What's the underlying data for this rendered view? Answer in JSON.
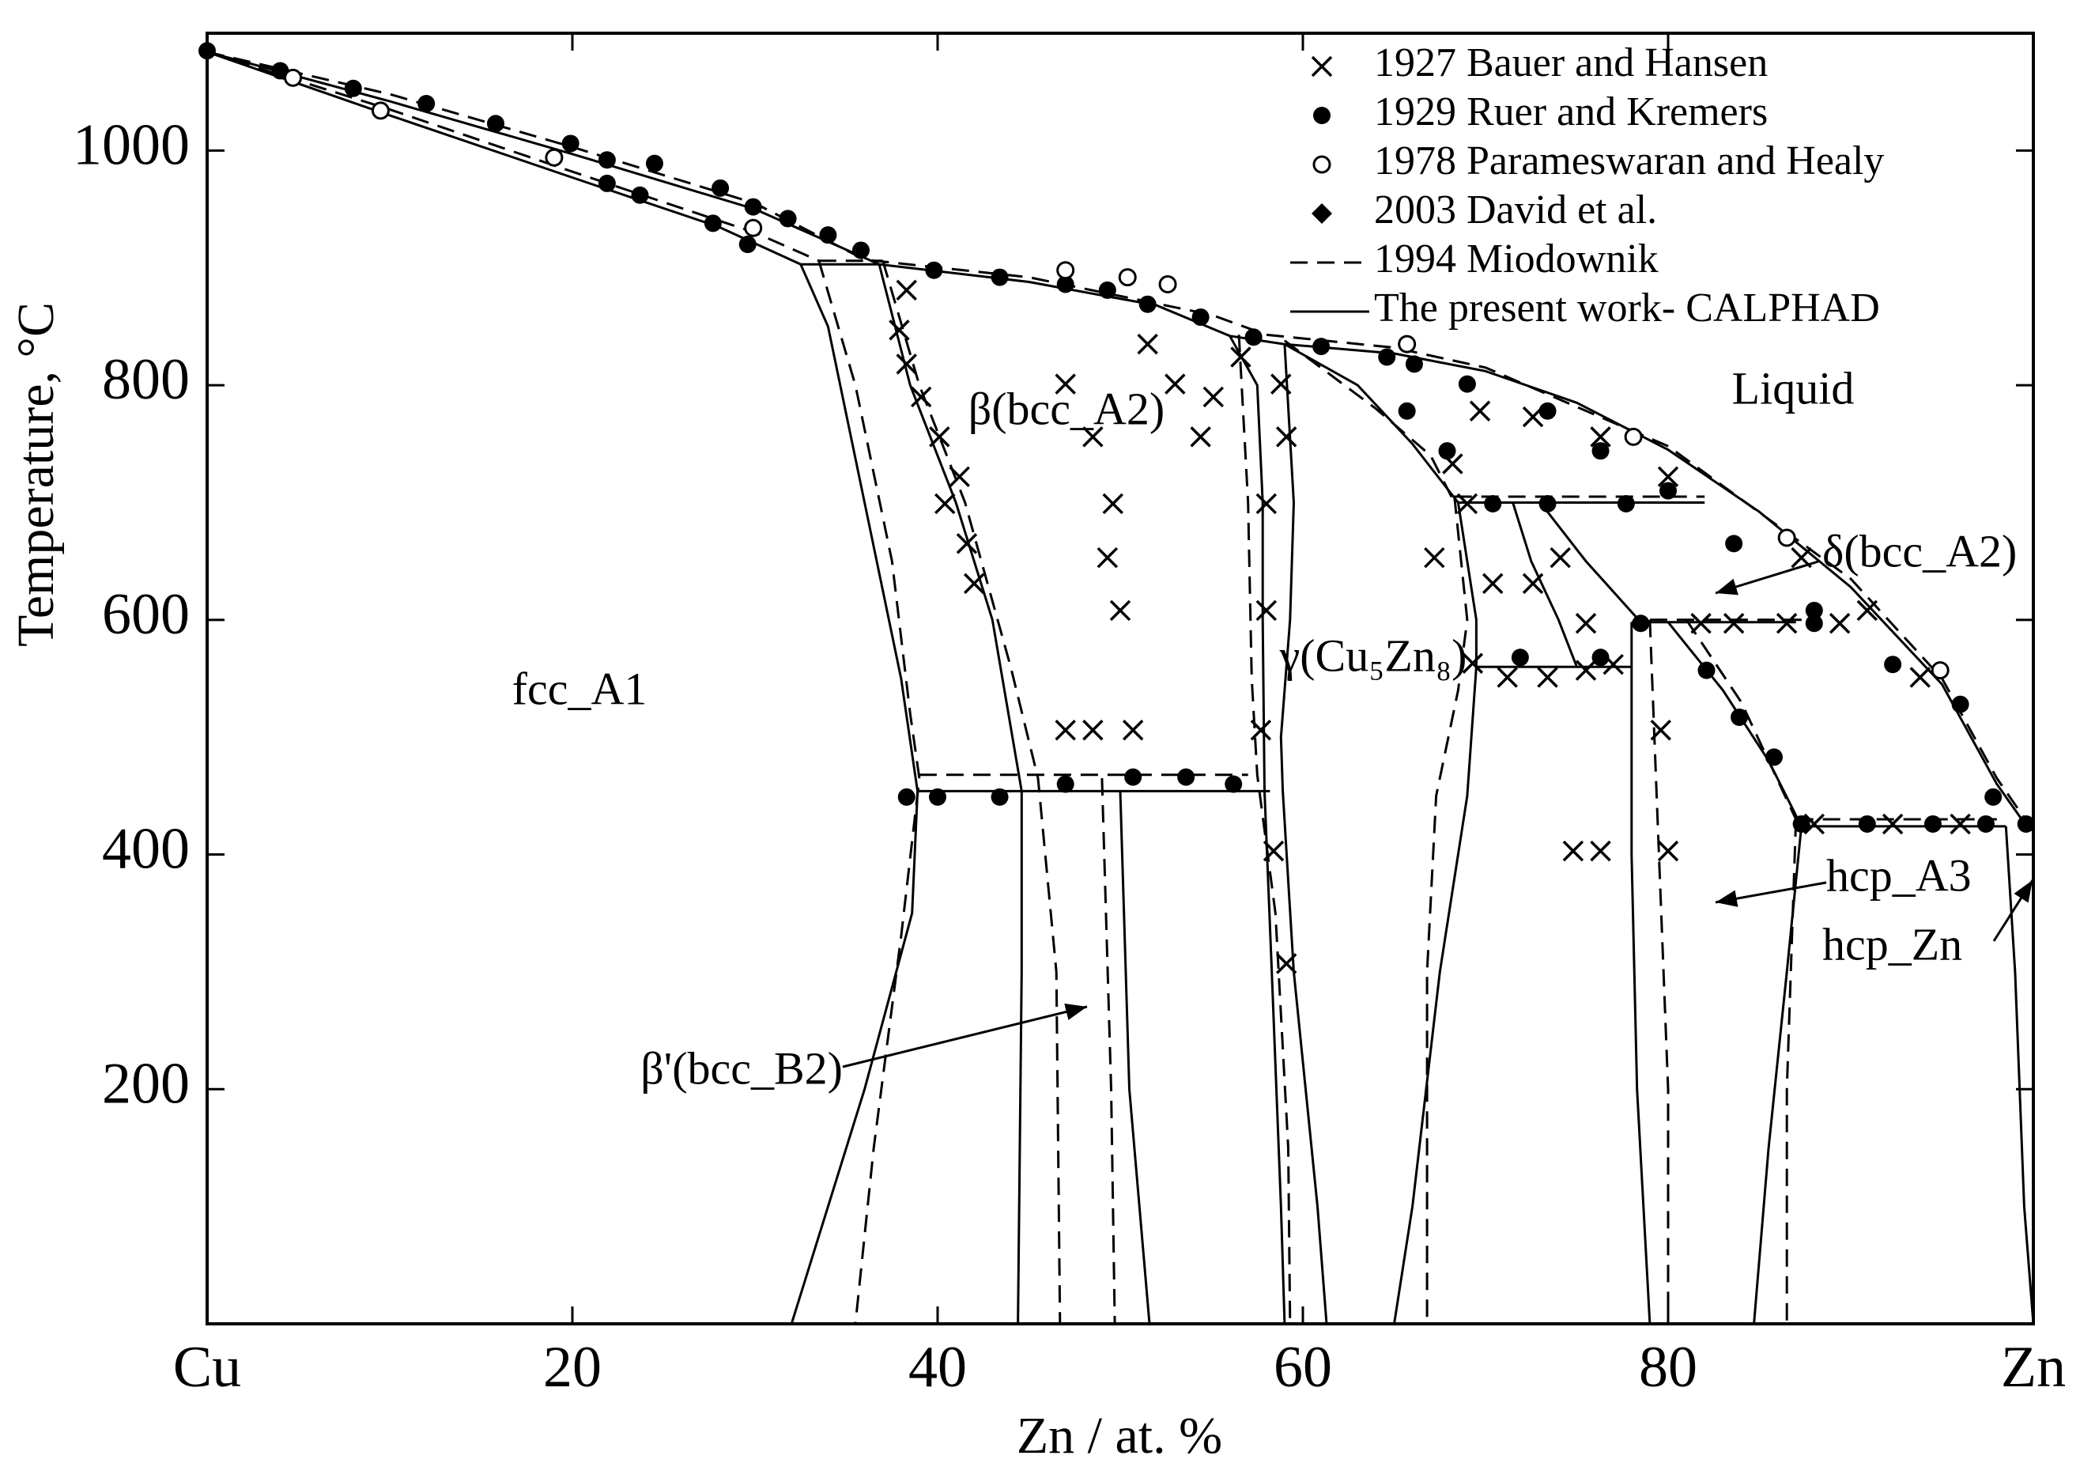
{
  "chart_data": {
    "type": "line",
    "x_label": "Zn / at. %",
    "y_label": "Temperature, °C",
    "xlim": [
      0,
      100
    ],
    "ylim": [
      0,
      1100
    ],
    "xticks": [
      {
        "value": 0,
        "label": "Cu"
      },
      20,
      40,
      60,
      80,
      {
        "value": 100,
        "label": "Zn"
      }
    ],
    "yticks": [
      200,
      400,
      600,
      800,
      1000
    ],
    "legend": "upper right",
    "annotations": [
      "Liquid",
      "fcc_A1",
      "β(bcc_A2)",
      "γ(Cu₅Zn₈)",
      "δ(bcc_A2)",
      "hcp_A3",
      "hcp_Zn",
      "β'(bcc_B2)"
    ],
    "series": [
      {
        "name": "1927 Bauer and Hansen",
        "type": "scatter",
        "marker": "x",
        "color": "#000000",
        "x": [
          38.3,
          37.9,
          38.3,
          39.1,
          40.1,
          41.2,
          40.4,
          41.6,
          42,
          47,
          48.5,
          49.6,
          49.3,
          50,
          47,
          48.5,
          50.7,
          51.5,
          53,
          54.4,
          55.1,
          56.6,
          58.8,
          59.1,
          58,
          58,
          57.7,
          58.4,
          59.1,
          67.2,
          68.2,
          69,
          70.4,
          69.3,
          71.2,
          73.4,
          75.5,
          77,
          72.6,
          74.1,
          75.5,
          74.8,
          76.3,
          79.6,
          80,
          81.8,
          83.6,
          86.5,
          89.4,
          88,
          92.3,
          96,
          69.7,
          72.6,
          76.3,
          80,
          87.3,
          90.9,
          93.8
        ],
        "values": [
          881,
          847,
          818,
          790,
          756,
          722,
          699,
          665,
          631,
          801,
          756,
          699,
          653,
          608,
          506,
          506,
          506,
          835,
          801,
          756,
          790,
          824,
          801,
          756,
          699,
          608,
          506,
          403,
          307,
          653,
          733,
          699,
          631,
          563,
          551,
          551,
          557,
          562,
          631,
          653,
          597,
          403,
          403,
          506,
          403,
          597,
          597,
          597,
          597,
          426,
          426,
          426,
          778,
          773,
          756,
          722,
          653,
          608,
          551
        ]
      },
      {
        "name": "1929 Ruer and Kremers",
        "type": "scatter",
        "marker": "circle",
        "color": "#000000",
        "x": [
          0,
          4,
          8,
          12,
          15.8,
          19.9,
          21.9,
          24.5,
          28.1,
          29.9,
          31.8,
          34,
          35.8,
          39.8,
          43.4,
          47,
          49.3,
          51.5,
          54.4,
          57.3,
          61,
          64.6,
          66.1,
          69,
          73.4,
          76.3,
          80,
          83.6,
          88,
          92.3,
          96,
          97.8,
          99.6,
          21.9,
          23.7,
          27.7,
          29.6,
          40,
          43.4,
          47,
          50.7,
          53.6,
          56.2,
          38.3,
          65.7,
          67.9,
          70.4,
          73.4,
          77.7,
          71.9,
          76.3,
          82.1,
          83.9,
          85.8,
          87.3,
          90.9,
          94.5,
          97.4,
          78.5,
          88
        ],
        "values": [
          1085,
          1068,
          1053,
          1040,
          1023,
          1006,
          992,
          989,
          968,
          952,
          942,
          928,
          915,
          898,
          892,
          886,
          881,
          869,
          858,
          841,
          833,
          824,
          818,
          801,
          778,
          744,
          710,
          665,
          608,
          562,
          528,
          449,
          426,
          972,
          962,
          938,
          920,
          449,
          449,
          460,
          466,
          466,
          460,
          449,
          778,
          744,
          699,
          699,
          699,
          568,
          568,
          557,
          517,
          483,
          426,
          426,
          426,
          426,
          597,
          597
        ]
      },
      {
        "name": "1978 Parameswaran and Healy",
        "type": "scatter",
        "marker": "open-circle",
        "color": "#000000",
        "x": [
          4.7,
          9.5,
          19,
          29.9,
          47,
          50.4,
          52.6,
          65.7,
          78.1,
          86.5,
          94.9
        ],
        "values": [
          1062,
          1034,
          994,
          934,
          898,
          892,
          886,
          835,
          756,
          670,
          557
        ]
      },
      {
        "name": "2003 David et al.",
        "type": "scatter",
        "marker": "diamond",
        "color": "#000000",
        "x": [],
        "values": []
      },
      {
        "name": "1994 Miodownik",
        "type": "line",
        "dash": "dashed",
        "color": "#000000",
        "x": [
          0,
          10,
          20,
          30,
          36,
          45,
          55,
          58,
          65,
          70,
          80,
          90,
          95,
          98,
          100,
          null,
          0,
          10,
          20,
          30,
          33.5,
          null,
          33.5,
          37,
          null,
          33.5,
          35.5,
          37.5,
          38.5,
          39,
          38,
          36.5,
          35.5,
          null,
          37,
          39,
          41.5,
          44,
          45.5,
          46.5,
          46.7,
          null,
          49,
          49.5,
          49.7,
          null,
          39,
          57,
          null,
          56.5,
          57,
          57.2,
          57.5,
          58.5,
          59.2,
          59.3,
          null,
          59,
          64,
          67,
          68.3,
          null,
          68.3,
          82,
          null,
          68.3,
          69,
          68.5,
          67.3,
          66.8,
          66.8,
          null,
          79,
          88,
          null,
          79,
          79.5,
          80,
          80,
          null,
          81,
          84,
          87,
          null,
          87,
          86.5,
          86.5,
          null,
          87,
          98
        ],
        "values": [
          1084,
          1048,
          1003,
          955,
          907,
          892,
          860,
          843,
          832,
          815,
          748,
          635,
          550,
          465,
          420,
          null,
          1084,
          1035,
          982,
          930,
          906,
          null,
          906,
          906,
          null,
          906,
          800,
          650,
          520,
          465,
          330,
          150,
          0,
          null,
          906,
          800,
          700,
          560,
          465,
          300,
          0,
          null,
          465,
          200,
          0,
          null,
          468,
          468,
          null,
          843,
          700,
          550,
          468,
          350,
          150,
          0,
          null,
          838,
          780,
          740,
          700,
          null,
          705,
          705,
          null,
          705,
          600,
          540,
          450,
          300,
          0,
          null,
          600,
          600,
          null,
          600,
          400,
          200,
          0,
          null,
          600,
          530,
          430,
          null,
          430,
          200,
          0,
          null,
          430,
          430
        ]
      },
      {
        "name": "The present work- CALPHAD",
        "type": "line",
        "dash": "solid",
        "color": "#000000",
        "x": [
          0,
          10,
          20,
          30,
          36.8,
          45,
          52,
          56,
          59,
          65,
          70,
          75,
          80,
          85,
          90,
          95,
          98,
          99.5,
          100,
          null,
          0,
          10,
          20,
          28,
          32.5,
          null,
          32.5,
          36.8,
          null,
          32.5,
          34,
          36,
          38,
          38.9,
          38.6,
          36,
          32,
          null,
          36.8,
          38.5,
          41,
          43,
          44.6,
          44.6,
          44.4,
          null,
          50,
          50.5,
          51.6,
          null,
          38.9,
          58.2,
          null,
          56,
          57.5,
          57.8,
          57.8,
          57.9,
          58.3,
          58.8,
          59,
          null,
          59,
          59.5,
          59.3,
          58.8,
          58.9,
          59.5,
          60.8,
          61.3,
          null,
          59,
          63,
          66,
          68.5,
          null,
          68.5,
          82,
          null,
          68.5,
          69.5,
          69.5,
          69,
          67.5,
          66,
          65,
          null,
          71.5,
          72.5,
          74,
          75,
          null,
          73,
          75.5,
          78.5,
          null,
          78,
          87,
          null,
          69.5,
          78,
          null,
          78,
          78,
          78.3,
          79,
          null,
          80,
          83,
          85.5,
          87.3,
          null,
          87.3,
          86.5,
          85.5,
          84.7,
          null,
          87.3,
          98.5,
          null,
          98.5,
          99,
          99.5,
          100
        ],
        "values": [
          1084,
          1042,
          997,
          950,
          903,
          888,
          868,
          842,
          835,
          827,
          812,
          785,
          745,
          692,
          628,
          545,
          460,
          427,
          420,
          null,
          1084,
          1030,
          977,
          935,
          903,
          null,
          903,
          903,
          null,
          903,
          850,
          700,
          550,
          454,
          350,
          200,
          0,
          null,
          903,
          800,
          700,
          600,
          454,
          300,
          0,
          null,
          454,
          200,
          0,
          null,
          454,
          454,
          null,
          842,
          800,
          700,
          600,
          454,
          300,
          100,
          0,
          null,
          835,
          700,
          600,
          500,
          454,
          300,
          100,
          0,
          null,
          835,
          800,
          750,
          700,
          null,
          700,
          700,
          null,
          700,
          600,
          560,
          450,
          300,
          100,
          0,
          null,
          700,
          650,
          600,
          560,
          null,
          700,
          650,
          598,
          null,
          598,
          598,
          null,
          560,
          560,
          null,
          598,
          400,
          200,
          0,
          null,
          598,
          540,
          480,
          424,
          null,
          424,
          300,
          150,
          0,
          null,
          424,
          424,
          null,
          424,
          300,
          100,
          0
        ]
      }
    ]
  }
}
